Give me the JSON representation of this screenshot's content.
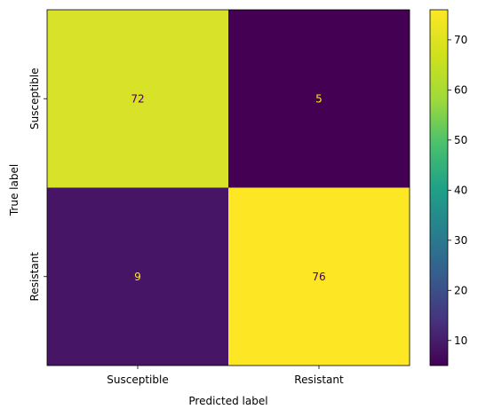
{
  "chart_data": {
    "type": "heatmap",
    "title": "",
    "xlabel": "Predicted label",
    "ylabel": "True label",
    "x_categories": [
      "Susceptible",
      "Resistant"
    ],
    "y_categories": [
      "Susceptible",
      "Resistant"
    ],
    "matrix": [
      [
        72,
        5
      ],
      [
        9,
        76
      ]
    ],
    "colorbar": {
      "min": 5,
      "max": 76,
      "ticks": [
        10,
        20,
        30,
        40,
        50,
        60,
        70
      ]
    },
    "colormap": "viridis",
    "text_colors": {
      "on_dark": "#fde725",
      "on_light": "#440154"
    },
    "grid": false
  }
}
